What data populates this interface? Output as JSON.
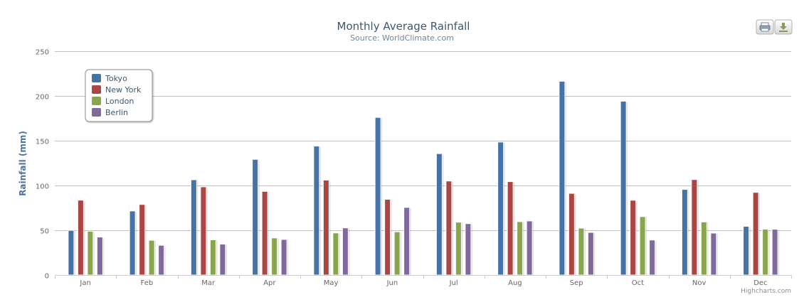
{
  "chart_data": {
    "type": "bar",
    "title": "Monthly Average Rainfall",
    "subtitle": "Source: WorldClimate.com",
    "ylabel": "Rainfall (mm)",
    "xlabel": "",
    "ylim": [
      0,
      250
    ],
    "yticks": [
      0,
      50,
      100,
      150,
      200,
      250
    ],
    "grid": true,
    "legend_position": "top-left",
    "categories": [
      "Jan",
      "Feb",
      "Mar",
      "Apr",
      "May",
      "Jun",
      "Jul",
      "Aug",
      "Sep",
      "Oct",
      "Nov",
      "Dec"
    ],
    "series": [
      {
        "name": "Tokyo",
        "color": "#4572A7",
        "values": [
          49.9,
          71.5,
          106.4,
          129.2,
          144.0,
          176.0,
          135.6,
          148.5,
          216.4,
          194.1,
          95.6,
          54.4
        ]
      },
      {
        "name": "New York",
        "color": "#AA4643",
        "values": [
          83.6,
          78.8,
          98.5,
          93.4,
          106.0,
          84.5,
          105.0,
          104.3,
          91.2,
          83.5,
          106.6,
          92.3
        ]
      },
      {
        "name": "London",
        "color": "#89A54E",
        "values": [
          48.9,
          38.8,
          39.3,
          41.4,
          47.0,
          48.3,
          59.0,
          59.6,
          52.4,
          65.2,
          59.3,
          51.2
        ]
      },
      {
        "name": "Berlin",
        "color": "#80699B",
        "values": [
          42.4,
          33.2,
          34.5,
          39.7,
          52.6,
          75.5,
          57.4,
          60.4,
          47.6,
          39.1,
          46.8,
          51.1
        ]
      }
    ]
  },
  "toolbar": {
    "print_icon": "printer-icon",
    "export_icon": "download-icon"
  },
  "credits": "Highcharts.com"
}
